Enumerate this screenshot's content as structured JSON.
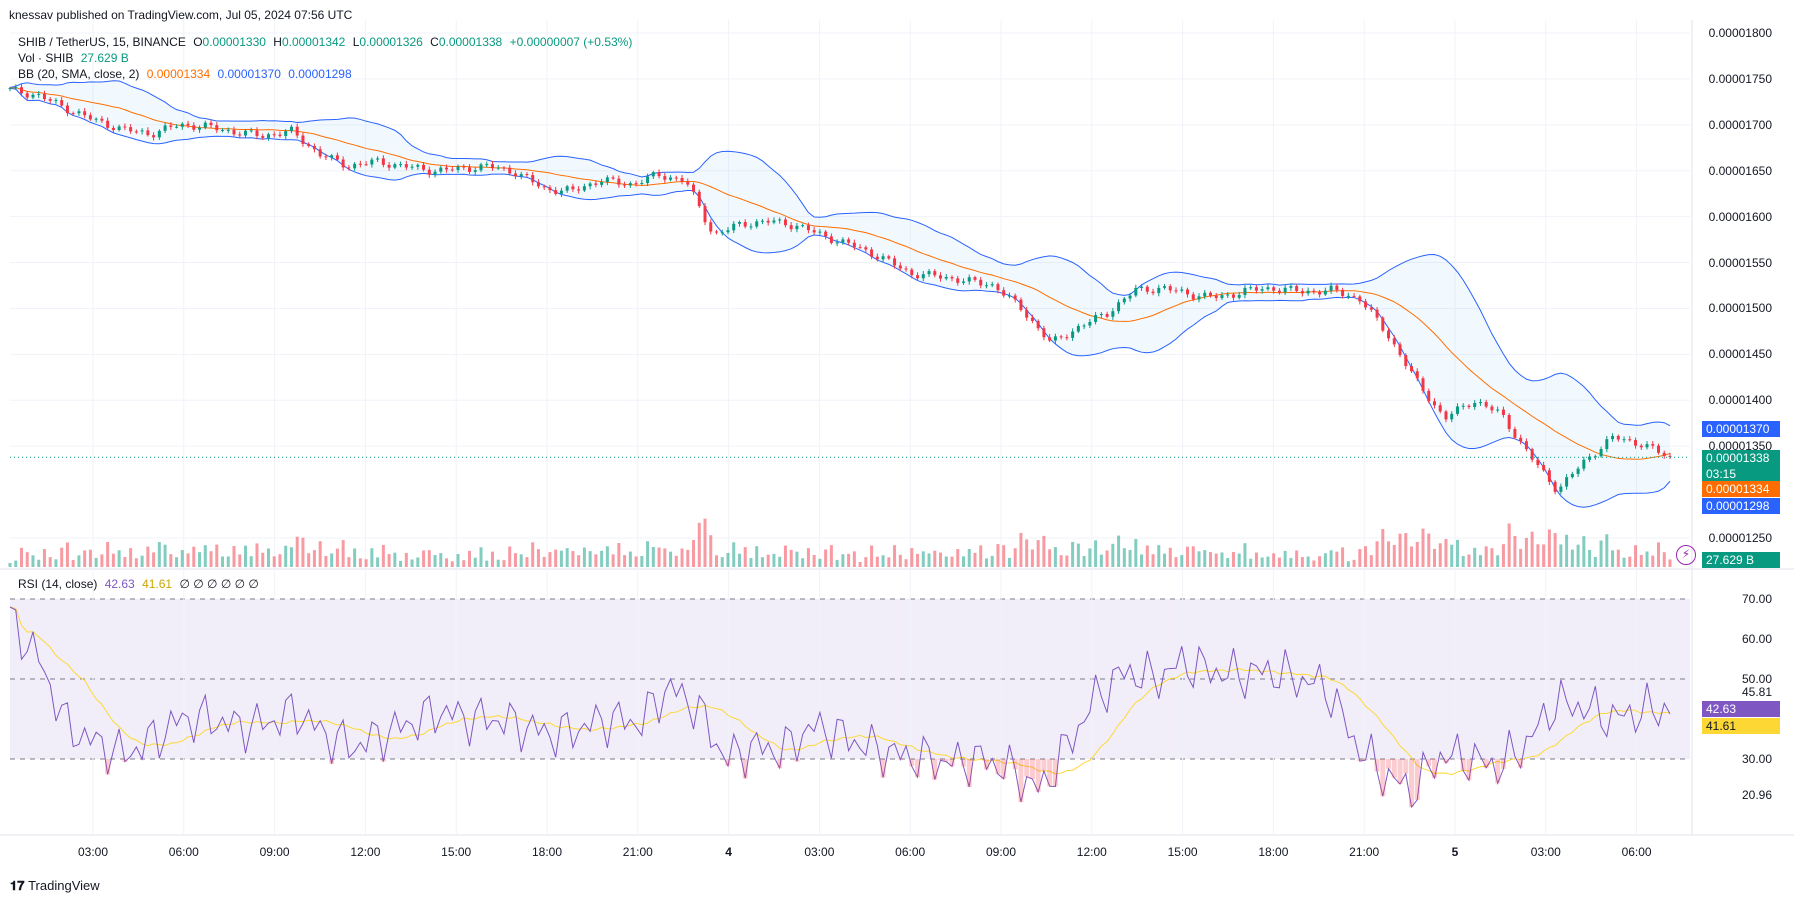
{
  "header": {
    "published_by": "knessav published on TradingView.com, Jul 05, 2024 07:56 UTC"
  },
  "legend": {
    "symbol": "SHIB / TetherUS, 15, BINANCE",
    "open_label": "O",
    "open": "0.00001330",
    "high_label": "H",
    "high": "0.00001342",
    "low_label": "L",
    "low": "0.00001326",
    "close_label": "C",
    "close": "0.00001338",
    "change": "+0.00000007 (+0.53%)",
    "vol_label": "Vol · SHIB",
    "vol_value": "27.629 B",
    "bb_label": "BB (20, SMA, close, 2)",
    "bb_basis": "0.00001334",
    "bb_upper": "0.00001370",
    "bb_lower": "0.00001298",
    "rsi_label": "RSI (14, close)",
    "rsi_value": "42.63",
    "rsi_ma": "41.61",
    "rsi_zeros": "∅ ∅ ∅ ∅ ∅ ∅"
  },
  "price_axis": {
    "ticks": [
      "0.00001800",
      "0.00001750",
      "0.00001700",
      "0.00001650",
      "0.00001600",
      "0.00001550",
      "0.00001500",
      "0.00001450",
      "0.00001400",
      "0.00001350",
      "0.00001250"
    ]
  },
  "price_tags": {
    "upper": "0.00001370",
    "last": "0.00001338",
    "countdown": "03:15",
    "basis": "0.00001334",
    "lower": "0.00001298",
    "volume": "27.629 B"
  },
  "rsi_axis": {
    "ticks": [
      "70.00",
      "60.00",
      "50.00",
      "30.00",
      "20.96"
    ],
    "extra": "45.81",
    "rsi_tag": "42.63",
    "ma_tag": "41.61"
  },
  "time_axis": {
    "labels": [
      "03:00",
      "06:00",
      "09:00",
      "12:00",
      "15:00",
      "18:00",
      "21:00",
      "4",
      "03:00",
      "06:00",
      "09:00",
      "12:00",
      "15:00",
      "18:00",
      "21:00",
      "5",
      "03:00",
      "06:00"
    ]
  },
  "footer": {
    "brand": "TradingView"
  },
  "colors": {
    "up": "#089981",
    "down": "#f23645",
    "bb_band": "#2962ff",
    "bb_basis": "#ff6d00",
    "rsi_line": "#7e57c2",
    "rsi_ma": "#fdd835",
    "grid": "#f0f3fa"
  },
  "chart_data": {
    "type": "candlestick",
    "symbol": "SHIB / TetherUS",
    "interval": "15",
    "ylim": [
      1.23e-05,
      1.81e-05
    ],
    "close_path": [
      1738,
      1732,
      1718,
      1705,
      1695,
      1690,
      1700,
      1698,
      1692,
      1688,
      1693,
      1668,
      1655,
      1660,
      1655,
      1650,
      1652,
      1655,
      1648,
      1630,
      1628,
      1640,
      1635,
      1645,
      1640,
      1580,
      1592,
      1595,
      1590,
      1578,
      1568,
      1555,
      1538,
      1535,
      1530,
      1525,
      1498,
      1462,
      1480,
      1495,
      1520,
      1522,
      1515,
      1512,
      1520,
      1522,
      1518,
      1520,
      1510,
      1470,
      1420,
      1380,
      1400,
      1385,
      1340,
      1302,
      1335,
      1360,
      1352,
      1338
    ],
    "rsi_path": [
      65,
      55,
      38,
      34,
      31,
      35,
      40,
      40,
      38,
      39,
      42,
      36,
      33,
      36,
      39,
      42,
      40,
      40,
      38,
      36,
      38,
      40,
      39,
      48,
      43,
      30,
      33,
      32,
      38,
      36,
      33,
      31,
      30,
      29,
      30,
      27,
      22,
      34,
      46,
      52,
      50,
      54,
      52,
      51,
      52,
      50,
      48,
      34,
      26,
      22,
      31,
      30,
      28,
      34,
      44,
      43,
      40,
      42,
      42.63
    ]
  }
}
